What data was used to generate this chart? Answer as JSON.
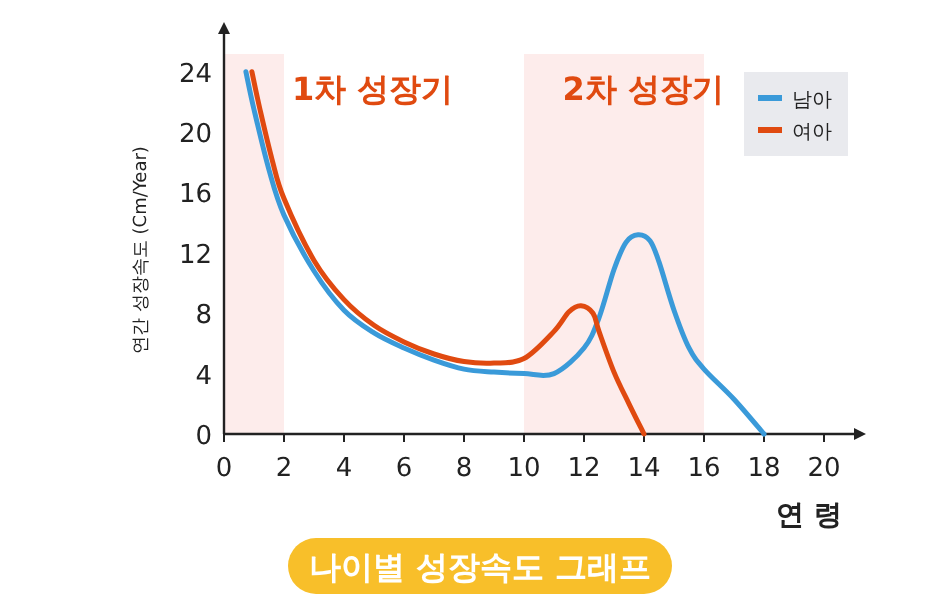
{
  "chart_data": {
    "type": "line",
    "title": "나이별 성장속도 그래프",
    "xlabel": "연 령",
    "ylabel": "연간 성장속도 (Cm/Year)",
    "xlim": [
      0,
      21
    ],
    "ylim": [
      0,
      26.5
    ],
    "xticks": [
      0,
      2,
      4,
      6,
      8,
      10,
      12,
      14,
      16,
      18,
      20
    ],
    "yticks": [
      0,
      4,
      8,
      12,
      16,
      20,
      24
    ],
    "legend": "top right",
    "grid": false,
    "marker": "none",
    "line_style": "solid",
    "series": [
      {
        "name": "남아",
        "color": "#3a9ad9",
        "x": [
          0.73,
          1,
          1.5,
          2,
          3,
          4,
          5,
          6,
          7,
          8,
          9,
          10,
          11,
          12,
          12.5,
          13,
          13.4,
          13.8,
          14.2,
          14.5,
          15,
          15.5,
          16,
          17,
          18
        ],
        "values": [
          24,
          21.5,
          17.5,
          14.5,
          10.8,
          8.2,
          6.7,
          5.7,
          4.9,
          4.3,
          4.1,
          4,
          4,
          5.7,
          7.7,
          10.9,
          12.7,
          13.2,
          12.8,
          11.4,
          8.2,
          5.7,
          4.3,
          2.3,
          0
        ]
      },
      {
        "name": "여아",
        "color": "#e04a10",
        "x": [
          0.93,
          1.2,
          1.6,
          2,
          3,
          4,
          5,
          6,
          7,
          8,
          9,
          10,
          11,
          11.5,
          11.9,
          12.3,
          12.5,
          13,
          13.5,
          14
        ],
        "values": [
          24,
          21.5,
          18.2,
          15.6,
          11.5,
          8.9,
          7.2,
          6.1,
          5.3,
          4.8,
          4.7,
          5,
          6.8,
          8.1,
          8.5,
          8,
          6.8,
          4.1,
          2,
          0
        ]
      }
    ],
    "bands": [
      {
        "axis": "x",
        "from": 0,
        "to": 2,
        "label": "1차 성장기",
        "color": "#fdeceb"
      },
      {
        "axis": "x",
        "from": 10,
        "to": 16,
        "label": "2차 성장기",
        "color": "#fdeceb"
      }
    ]
  }
}
